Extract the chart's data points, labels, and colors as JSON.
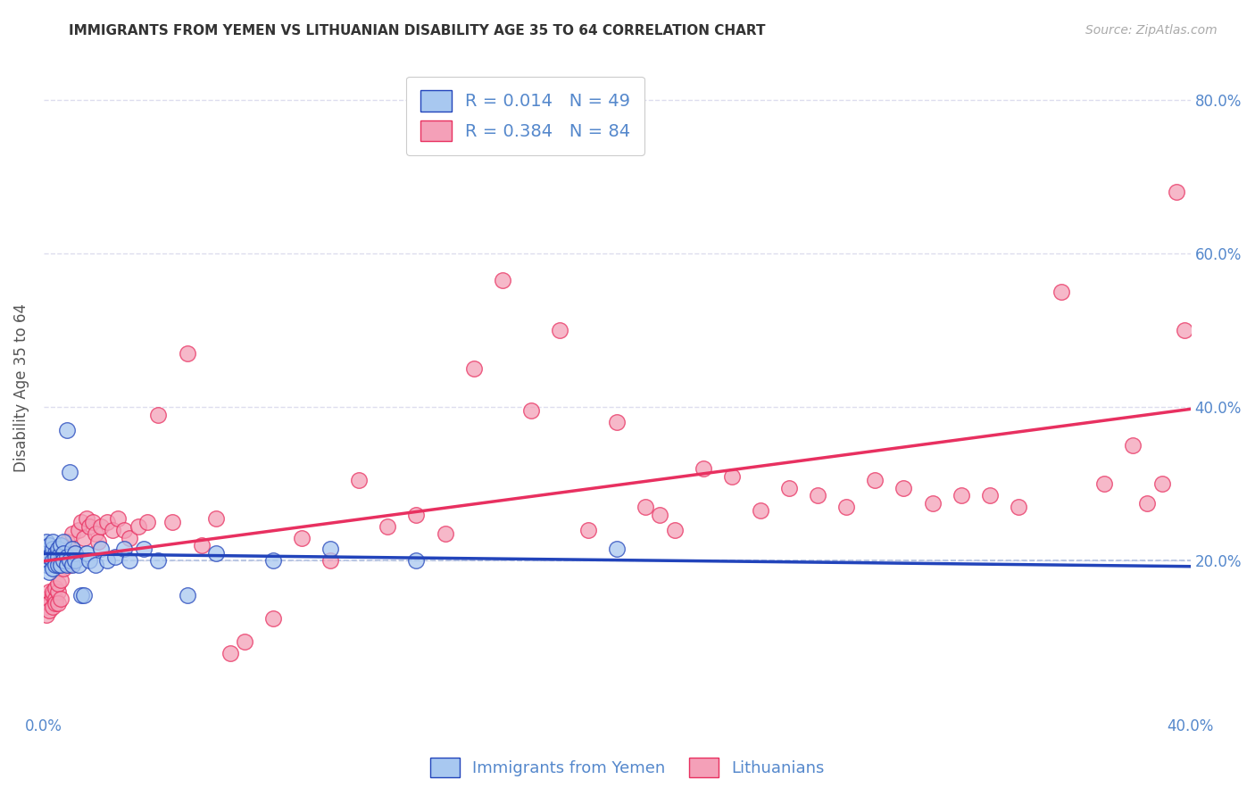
{
  "title": "IMMIGRANTS FROM YEMEN VS LITHUANIAN DISABILITY AGE 35 TO 64 CORRELATION CHART",
  "source": "Source: ZipAtlas.com",
  "ylabel": "Disability Age 35 to 64",
  "xlim": [
    0.0,
    0.4
  ],
  "ylim": [
    0.0,
    0.85
  ],
  "xticks": [
    0.0,
    0.4
  ],
  "xticklabels": [
    "0.0%",
    "40.0%"
  ],
  "yticks_right": [
    0.2,
    0.4,
    0.6,
    0.8
  ],
  "yticklabels_right": [
    "20.0%",
    "40.0%",
    "60.0%",
    "80.0%"
  ],
  "legend_labels": [
    "Immigrants from Yemen",
    "Lithuanians"
  ],
  "R_yemen": 0.014,
  "N_yemen": 49,
  "R_lithuanian": 0.384,
  "N_lithuanian": 84,
  "color_yemen": "#A8C8F0",
  "color_lithuanian": "#F4A0B8",
  "color_line_yemen": "#2244BB",
  "color_line_lithuanian": "#E83060",
  "color_dashed": "#AABBDD",
  "background_color": "#FFFFFF",
  "grid_color": "#DDDDEE",
  "title_color": "#333333",
  "axis_label_color": "#555555",
  "tick_color": "#5588CC",
  "source_color": "#AAAAAA",
  "yemen_x": [
    0.001,
    0.001,
    0.001,
    0.002,
    0.002,
    0.002,
    0.003,
    0.003,
    0.003,
    0.003,
    0.004,
    0.004,
    0.004,
    0.005,
    0.005,
    0.005,
    0.006,
    0.006,
    0.007,
    0.007,
    0.007,
    0.008,
    0.008,
    0.008,
    0.009,
    0.009,
    0.01,
    0.01,
    0.011,
    0.011,
    0.012,
    0.013,
    0.014,
    0.015,
    0.016,
    0.018,
    0.02,
    0.022,
    0.025,
    0.028,
    0.03,
    0.035,
    0.04,
    0.05,
    0.06,
    0.08,
    0.1,
    0.13,
    0.2
  ],
  "yemen_y": [
    0.225,
    0.21,
    0.195,
    0.22,
    0.205,
    0.185,
    0.215,
    0.225,
    0.2,
    0.19,
    0.21,
    0.205,
    0.195,
    0.215,
    0.205,
    0.195,
    0.22,
    0.195,
    0.225,
    0.21,
    0.2,
    0.37,
    0.205,
    0.195,
    0.315,
    0.2,
    0.215,
    0.195,
    0.21,
    0.2,
    0.195,
    0.155,
    0.155,
    0.21,
    0.2,
    0.195,
    0.215,
    0.2,
    0.205,
    0.215,
    0.2,
    0.215,
    0.2,
    0.155,
    0.21,
    0.2,
    0.215,
    0.2,
    0.215
  ],
  "lithuanian_x": [
    0.001,
    0.001,
    0.001,
    0.002,
    0.002,
    0.002,
    0.003,
    0.003,
    0.003,
    0.004,
    0.004,
    0.004,
    0.005,
    0.005,
    0.005,
    0.006,
    0.006,
    0.007,
    0.007,
    0.008,
    0.008,
    0.009,
    0.009,
    0.01,
    0.01,
    0.011,
    0.012,
    0.013,
    0.014,
    0.015,
    0.016,
    0.017,
    0.018,
    0.019,
    0.02,
    0.022,
    0.024,
    0.026,
    0.028,
    0.03,
    0.033,
    0.036,
    0.04,
    0.045,
    0.05,
    0.055,
    0.06,
    0.065,
    0.07,
    0.08,
    0.09,
    0.1,
    0.11,
    0.12,
    0.13,
    0.14,
    0.15,
    0.16,
    0.17,
    0.18,
    0.19,
    0.2,
    0.21,
    0.215,
    0.22,
    0.23,
    0.24,
    0.25,
    0.26,
    0.27,
    0.28,
    0.29,
    0.3,
    0.31,
    0.32,
    0.33,
    0.34,
    0.355,
    0.37,
    0.38,
    0.385,
    0.39,
    0.395,
    0.398
  ],
  "lithuanian_y": [
    0.15,
    0.14,
    0.13,
    0.16,
    0.145,
    0.135,
    0.155,
    0.14,
    0.16,
    0.15,
    0.165,
    0.145,
    0.16,
    0.145,
    0.17,
    0.15,
    0.175,
    0.21,
    0.19,
    0.225,
    0.2,
    0.195,
    0.215,
    0.2,
    0.235,
    0.21,
    0.24,
    0.25,
    0.23,
    0.255,
    0.245,
    0.25,
    0.235,
    0.225,
    0.245,
    0.25,
    0.24,
    0.255,
    0.24,
    0.23,
    0.245,
    0.25,
    0.39,
    0.25,
    0.47,
    0.22,
    0.255,
    0.08,
    0.095,
    0.125,
    0.23,
    0.2,
    0.305,
    0.245,
    0.26,
    0.235,
    0.45,
    0.565,
    0.395,
    0.5,
    0.24,
    0.38,
    0.27,
    0.26,
    0.24,
    0.32,
    0.31,
    0.265,
    0.295,
    0.285,
    0.27,
    0.305,
    0.295,
    0.275,
    0.285,
    0.285,
    0.27,
    0.55,
    0.3,
    0.35,
    0.275,
    0.3,
    0.68,
    0.5
  ]
}
